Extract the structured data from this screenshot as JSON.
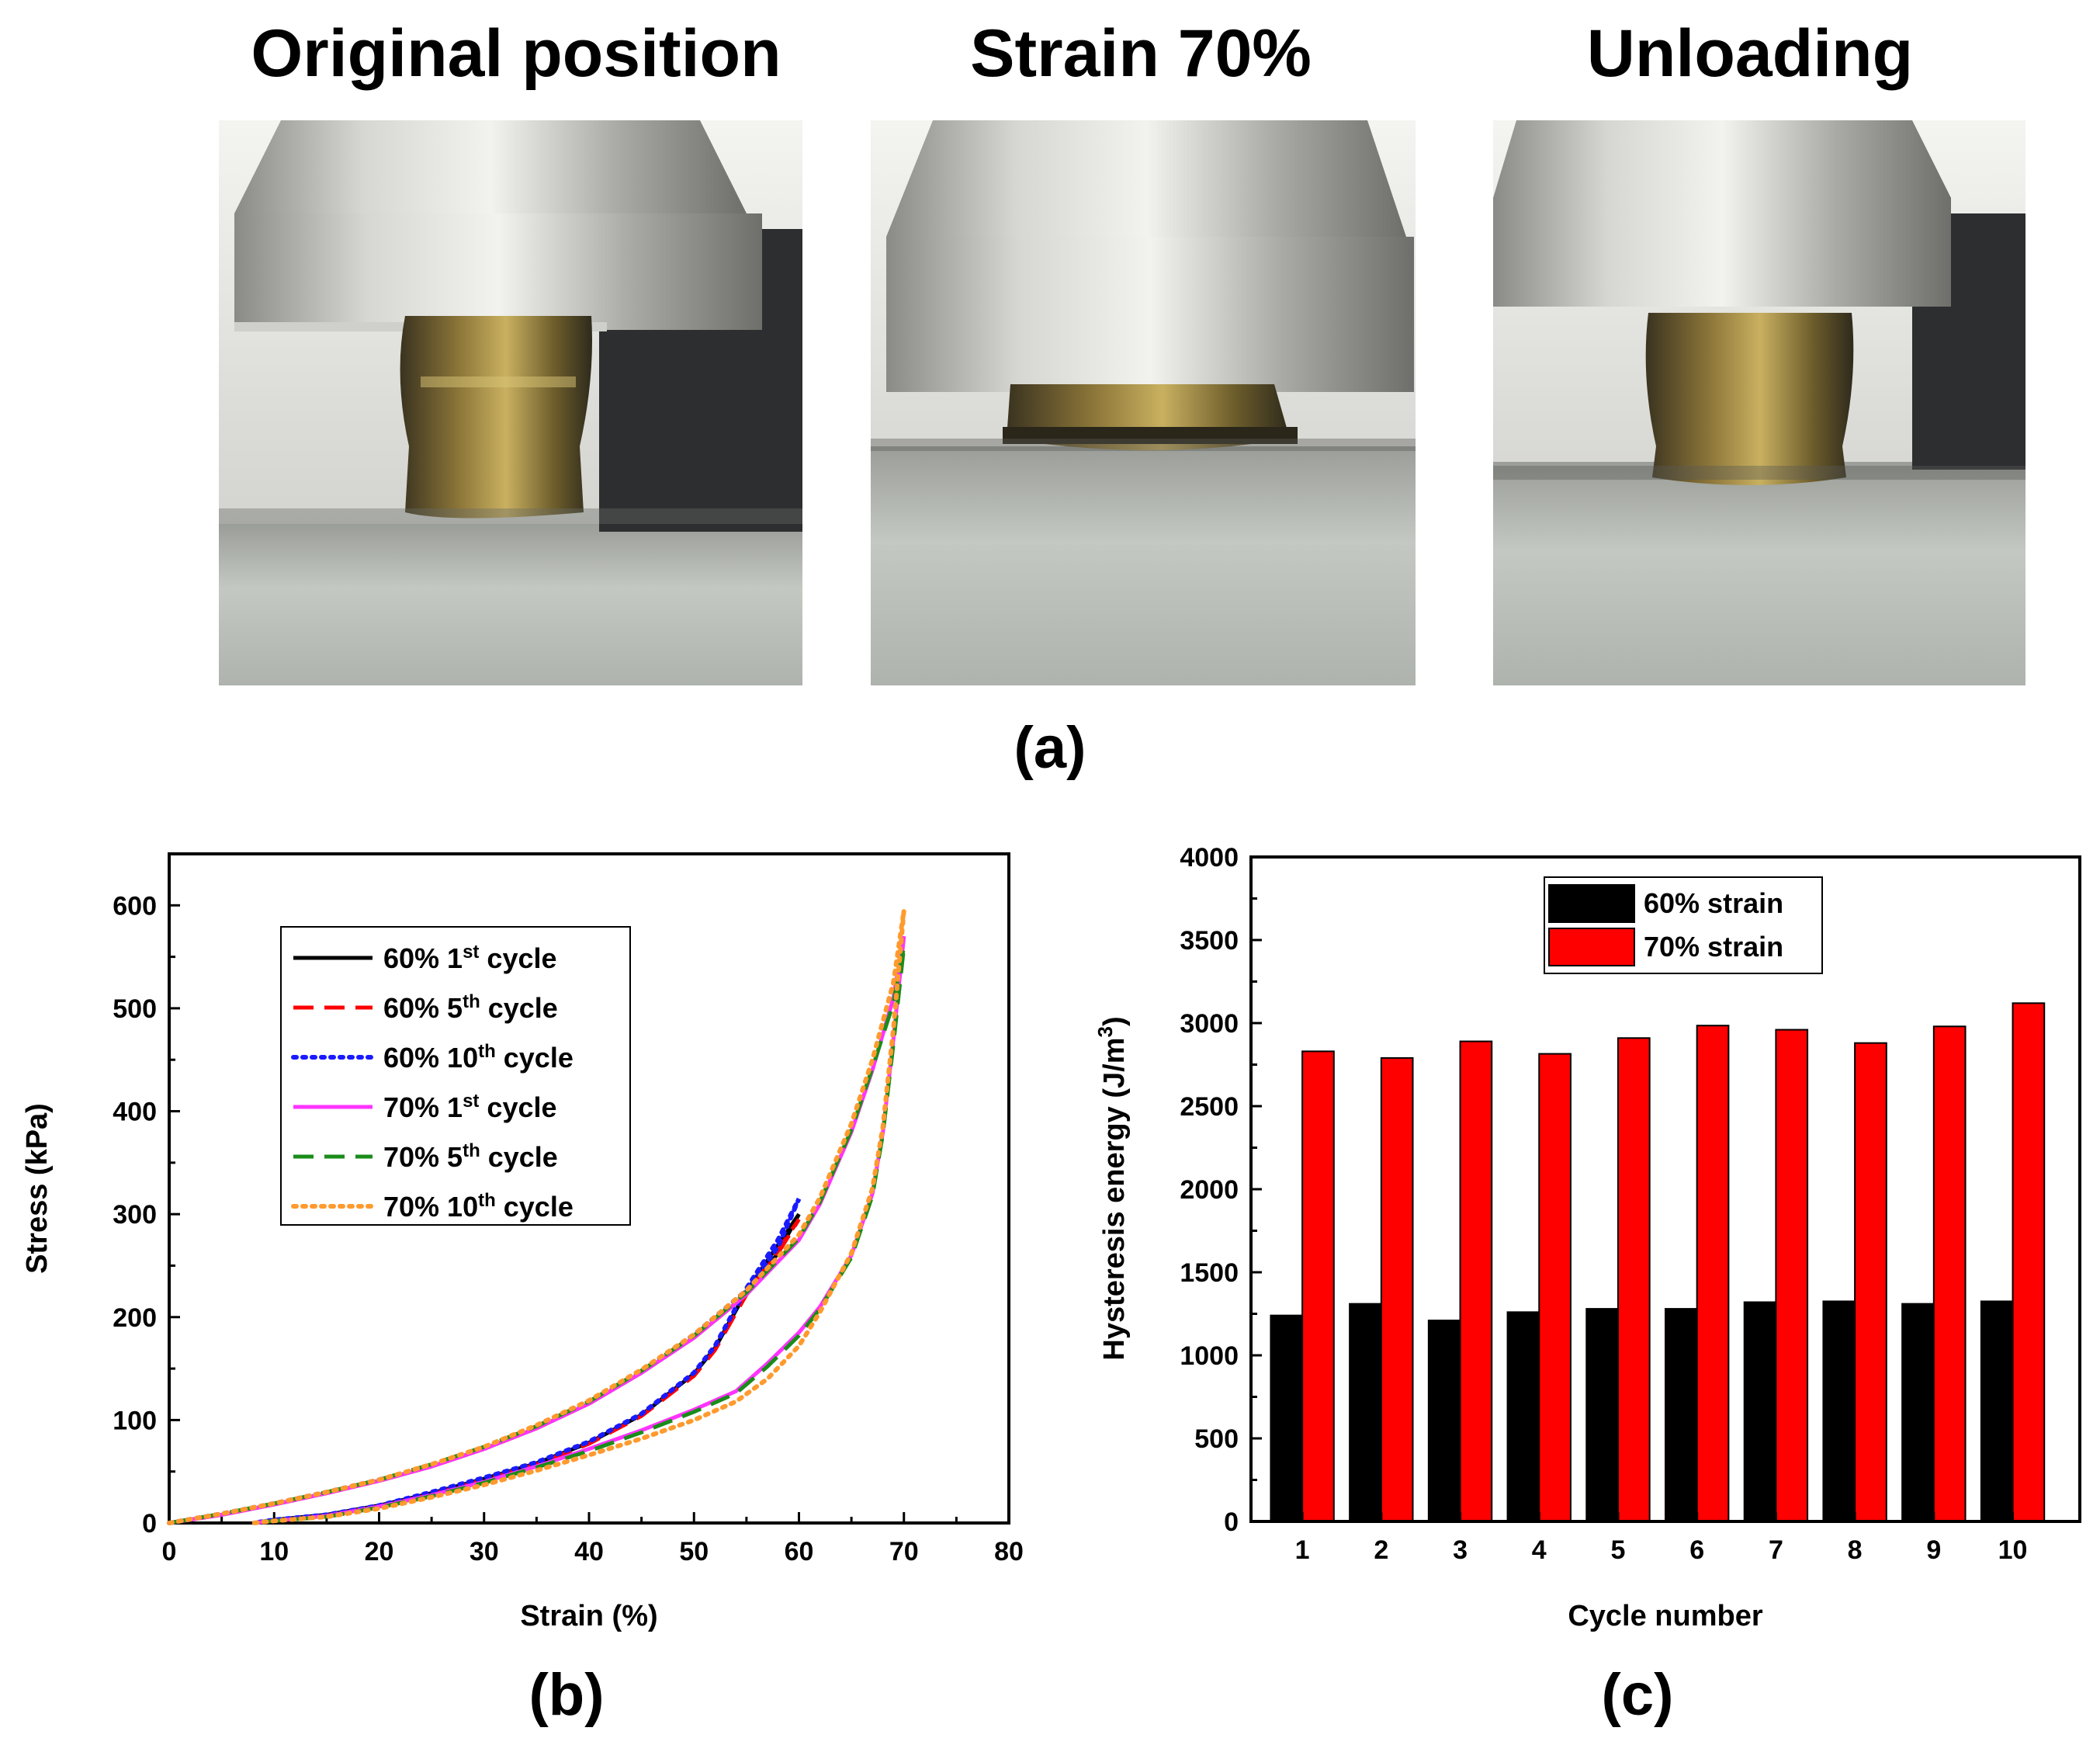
{
  "panel_a": {
    "titles": [
      "Original position",
      "Strain 70%",
      "Unloading"
    ],
    "label": "(a)"
  },
  "panel_b_label": "(b)",
  "panel_c_label": "(c)",
  "colors": {
    "black": "#000000",
    "red": "#ff0000",
    "blue": "#1a1aff",
    "magenta": "#ff33ff",
    "green": "#1a8c1a",
    "orange": "#ff9a2e"
  },
  "chart_data": [
    {
      "type": "line",
      "panel": "b",
      "xlabel": "Strain (%)",
      "ylabel": "Stress (kPa)",
      "xlim": [
        0,
        80
      ],
      "ylim": [
        0,
        650
      ],
      "xticks": [
        0,
        10,
        20,
        30,
        40,
        50,
        60,
        70,
        80
      ],
      "yticks": [
        0,
        100,
        200,
        300,
        400,
        500,
        600
      ],
      "legend_position": "upper-left",
      "series": [
        {
          "name": "60% 1st cycle",
          "label_main": "60% 1",
          "label_sup": "st",
          "label_tail": " cycle",
          "color": "#000000",
          "style": "solid",
          "loading": [
            [
              0,
              0
            ],
            [
              5,
              8
            ],
            [
              10,
              18
            ],
            [
              15,
              29
            ],
            [
              20,
              41
            ],
            [
              25,
              55
            ],
            [
              30,
              72
            ],
            [
              35,
              92
            ],
            [
              40,
              116
            ],
            [
              45,
              146
            ],
            [
              50,
              180
            ],
            [
              55,
              222
            ],
            [
              58,
              262
            ],
            [
              60,
              300
            ]
          ],
          "unloading": [
            [
              60,
              300
            ],
            [
              58,
              270
            ],
            [
              55,
              225
            ],
            [
              52,
              170
            ],
            [
              50,
              145
            ],
            [
              45,
              105
            ],
            [
              40,
              78
            ],
            [
              35,
              58
            ],
            [
              30,
              43
            ],
            [
              25,
              29
            ],
            [
              20,
              17
            ],
            [
              15,
              8
            ],
            [
              10,
              3
            ],
            [
              8,
              0
            ]
          ]
        },
        {
          "name": "60% 5th cycle",
          "label_main": "60% 5",
          "label_sup": "th",
          "label_tail": " cycle",
          "color": "#ff0000",
          "style": "dashed",
          "loading": [
            [
              0,
              0
            ],
            [
              5,
              8
            ],
            [
              10,
              18
            ],
            [
              15,
              29
            ],
            [
              20,
              41
            ],
            [
              25,
              55
            ],
            [
              30,
              72
            ],
            [
              35,
              92
            ],
            [
              40,
              116
            ],
            [
              45,
              146
            ],
            [
              50,
              180
            ],
            [
              55,
              222
            ],
            [
              58,
              262
            ],
            [
              60,
              295
            ]
          ],
          "unloading": [
            [
              60,
              295
            ],
            [
              58,
              265
            ],
            [
              55,
              222
            ],
            [
              52,
              168
            ],
            [
              50,
              143
            ],
            [
              45,
              104
            ],
            [
              40,
              77
            ],
            [
              35,
              57
            ],
            [
              30,
              42
            ],
            [
              25,
              28
            ],
            [
              20,
              16
            ],
            [
              15,
              7
            ],
            [
              10,
              2
            ],
            [
              8,
              0
            ]
          ]
        },
        {
          "name": "60% 10th cycle",
          "label_main": "60% 10",
          "label_sup": "th",
          "label_tail": " cycle",
          "color": "#1a1aff",
          "style": "dotted",
          "loading": [
            [
              0,
              0
            ],
            [
              5,
              9
            ],
            [
              10,
              19
            ],
            [
              15,
              30
            ],
            [
              20,
              42
            ],
            [
              25,
              56
            ],
            [
              30,
              73
            ],
            [
              35,
              93
            ],
            [
              40,
              118
            ],
            [
              45,
              148
            ],
            [
              50,
              183
            ],
            [
              55,
              226
            ],
            [
              58,
              268
            ],
            [
              60,
              315
            ]
          ],
          "unloading": [
            [
              60,
              315
            ],
            [
              58,
              275
            ],
            [
              55,
              228
            ],
            [
              52,
              172
            ],
            [
              50,
              146
            ],
            [
              45,
              106
            ],
            [
              40,
              79
            ],
            [
              35,
              59
            ],
            [
              30,
              44
            ],
            [
              25,
              30
            ],
            [
              20,
              17
            ],
            [
              15,
              8
            ],
            [
              10,
              3
            ],
            [
              8,
              0
            ]
          ]
        },
        {
          "name": "70% 1st cycle",
          "label_main": "70% 1",
          "label_sup": "st",
          "label_tail": " cycle",
          "color": "#ff33ff",
          "style": "solid",
          "loading": [
            [
              0,
              0
            ],
            [
              5,
              8
            ],
            [
              10,
              18
            ],
            [
              15,
              29
            ],
            [
              20,
              41
            ],
            [
              25,
              55
            ],
            [
              30,
              72
            ],
            [
              35,
              92
            ],
            [
              40,
              116
            ],
            [
              45,
              146
            ],
            [
              50,
              180
            ],
            [
              55,
              222
            ],
            [
              60,
              275
            ],
            [
              62,
              310
            ],
            [
              65,
              380
            ],
            [
              67,
              440
            ],
            [
              69,
              510
            ],
            [
              70,
              570
            ]
          ],
          "unloading": [
            [
              70,
              570
            ],
            [
              69,
              470
            ],
            [
              68,
              380
            ],
            [
              67,
              320
            ],
            [
              65,
              260
            ],
            [
              62,
              210
            ],
            [
              60,
              185
            ],
            [
              57,
              155
            ],
            [
              54,
              128
            ],
            [
              50,
              110
            ],
            [
              45,
              90
            ],
            [
              40,
              72
            ],
            [
              35,
              55
            ],
            [
              30,
              40
            ],
            [
              25,
              27
            ],
            [
              20,
              16
            ],
            [
              15,
              7
            ],
            [
              10,
              2
            ],
            [
              8,
              0
            ]
          ]
        },
        {
          "name": "70% 5th cycle",
          "label_main": "70% 5",
          "label_sup": "th",
          "label_tail": " cycle",
          "color": "#1a8c1a",
          "style": "dashed",
          "loading": [
            [
              0,
              0
            ],
            [
              5,
              9
            ],
            [
              10,
              19
            ],
            [
              15,
              30
            ],
            [
              20,
              42
            ],
            [
              25,
              57
            ],
            [
              30,
              74
            ],
            [
              35,
              94
            ],
            [
              40,
              118
            ],
            [
              45,
              148
            ],
            [
              50,
              182
            ],
            [
              55,
              224
            ],
            [
              60,
              277
            ],
            [
              62,
              312
            ],
            [
              65,
              382
            ],
            [
              67,
              442
            ],
            [
              69,
              505
            ],
            [
              70,
              560
            ]
          ],
          "unloading": [
            [
              70,
              560
            ],
            [
              69,
              465
            ],
            [
              68,
              378
            ],
            [
              67,
              318
            ],
            [
              65,
              258
            ],
            [
              62,
              208
            ],
            [
              60,
              182
            ],
            [
              57,
              152
            ],
            [
              54,
              126
            ],
            [
              50,
              108
            ],
            [
              45,
              88
            ],
            [
              40,
              70
            ],
            [
              35,
              54
            ],
            [
              30,
              39
            ],
            [
              25,
              26
            ],
            [
              20,
              15
            ],
            [
              15,
              6
            ],
            [
              10,
              2
            ],
            [
              8,
              0
            ]
          ]
        },
        {
          "name": "70% 10th cycle",
          "label_main": "70% 10",
          "label_sup": "th",
          "label_tail": " cycle",
          "color": "#ff9a2e",
          "style": "dotted",
          "loading": [
            [
              0,
              0
            ],
            [
              5,
              9
            ],
            [
              10,
              19
            ],
            [
              15,
              30
            ],
            [
              20,
              42
            ],
            [
              25,
              57
            ],
            [
              30,
              74
            ],
            [
              35,
              95
            ],
            [
              40,
              119
            ],
            [
              45,
              149
            ],
            [
              50,
              183
            ],
            [
              55,
              226
            ],
            [
              60,
              280
            ],
            [
              62,
              316
            ],
            [
              65,
              388
            ],
            [
              67,
              450
            ],
            [
              69,
              525
            ],
            [
              70,
              595
            ]
          ],
          "unloading": [
            [
              70,
              595
            ],
            [
              69,
              480
            ],
            [
              68,
              385
            ],
            [
              67,
              325
            ],
            [
              65,
              262
            ],
            [
              62,
              205
            ],
            [
              60,
              172
            ],
            [
              57,
              140
            ],
            [
              54,
              118
            ],
            [
              50,
              100
            ],
            [
              45,
              82
            ],
            [
              40,
              66
            ],
            [
              35,
              51
            ],
            [
              30,
              37
            ],
            [
              25,
              25
            ],
            [
              20,
              14
            ],
            [
              15,
              6
            ],
            [
              10,
              2
            ],
            [
              8,
              0
            ]
          ]
        }
      ]
    },
    {
      "type": "bar",
      "panel": "c",
      "xlabel": "Cycle number",
      "ylabel": "Hysteresis energy (J/m",
      "ylabel_sup": "3",
      "ylabel_tail": ")",
      "ylim": [
        0,
        4000
      ],
      "yticks": [
        0,
        500,
        1000,
        1500,
        2000,
        2500,
        3000,
        3500,
        4000
      ],
      "categories": [
        "1",
        "2",
        "3",
        "4",
        "5",
        "6",
        "7",
        "8",
        "9",
        "10"
      ],
      "legend_position": "top-center",
      "series": [
        {
          "name": "60% strain",
          "color": "#000000",
          "values": [
            1240,
            1310,
            1210,
            1260,
            1280,
            1280,
            1320,
            1325,
            1310,
            1325
          ]
        },
        {
          "name": "70% strain",
          "color": "#ff0000",
          "values": [
            2830,
            2790,
            2890,
            2815,
            2910,
            2985,
            2960,
            2880,
            2980,
            3120
          ]
        }
      ]
    }
  ]
}
